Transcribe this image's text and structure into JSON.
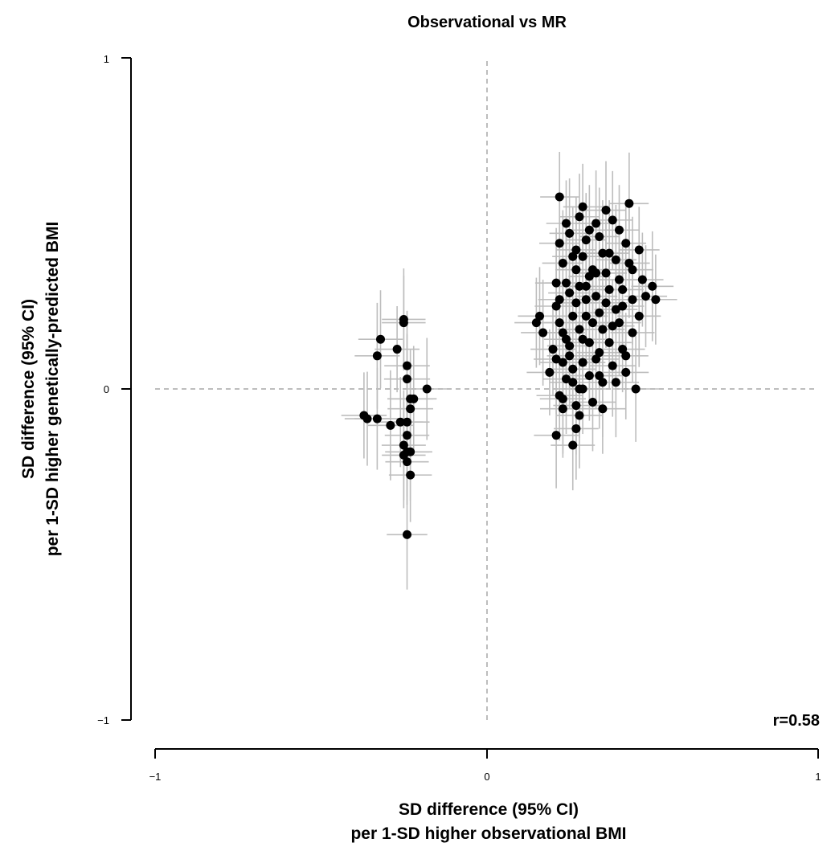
{
  "chart_data": {
    "type": "scatter",
    "title": "Observational vs MR",
    "xlabel": [
      "SD difference (95% CI)",
      "per 1-SD higher observational BMI"
    ],
    "ylabel": [
      "SD difference (95% CI)",
      "per 1-SD higher genetically-predicted BMI"
    ],
    "xlim": [
      -1,
      1
    ],
    "ylim": [
      -1,
      1
    ],
    "x_ticks": [
      -1,
      0,
      1
    ],
    "y_ticks": [
      -1,
      0,
      1
    ],
    "x_tick_labels": [
      "−1",
      "0",
      "1"
    ],
    "y_tick_labels": [
      "−1",
      "0",
      "1"
    ],
    "reference_lines": {
      "x": 0,
      "y": 0,
      "style": "dashed"
    },
    "annotation": "r=0.58",
    "point_color": "#000000",
    "errorbar_color": "#bdbdbd",
    "grid": false,
    "series": [
      {
        "points": [
          [
            -0.37,
            -0.08
          ],
          [
            -0.36,
            -0.09
          ],
          [
            -0.33,
            -0.09
          ],
          [
            -0.29,
            -0.11
          ],
          [
            -0.26,
            -0.1
          ],
          [
            -0.32,
            0.15
          ],
          [
            -0.33,
            0.1
          ],
          [
            -0.27,
            0.12
          ],
          [
            -0.25,
            0.2
          ],
          [
            -0.25,
            0.21
          ],
          [
            -0.24,
            0.07
          ],
          [
            -0.24,
            0.03
          ],
          [
            -0.23,
            -0.03
          ],
          [
            -0.22,
            -0.03
          ],
          [
            -0.23,
            -0.06
          ],
          [
            -0.24,
            -0.1
          ],
          [
            -0.24,
            -0.14
          ],
          [
            -0.25,
            -0.17
          ],
          [
            -0.24,
            -0.19
          ],
          [
            -0.23,
            -0.19
          ],
          [
            -0.25,
            -0.2
          ],
          [
            -0.24,
            -0.22
          ],
          [
            -0.23,
            -0.26
          ],
          [
            -0.18,
            0.0
          ],
          [
            -0.24,
            -0.44
          ],
          [
            0.15,
            0.2
          ],
          [
            0.16,
            0.22
          ],
          [
            0.17,
            0.17
          ],
          [
            0.19,
            0.05
          ],
          [
            0.2,
            0.12
          ],
          [
            0.21,
            0.25
          ],
          [
            0.21,
            0.32
          ],
          [
            0.22,
            0.58
          ],
          [
            0.22,
            0.44
          ],
          [
            0.23,
            0.38
          ],
          [
            0.22,
            0.2
          ],
          [
            0.23,
            0.17
          ],
          [
            0.23,
            0.08
          ],
          [
            0.24,
            0.03
          ],
          [
            0.22,
            -0.02
          ],
          [
            0.23,
            -0.06
          ],
          [
            0.21,
            -0.14
          ],
          [
            0.24,
            0.5
          ],
          [
            0.25,
            0.29
          ],
          [
            0.25,
            0.13
          ],
          [
            0.26,
            0.06
          ],
          [
            0.26,
            0.22
          ],
          [
            0.27,
            0.36
          ],
          [
            0.27,
            0.42
          ],
          [
            0.28,
            0.52
          ],
          [
            0.28,
            0.31
          ],
          [
            0.28,
            0.18
          ],
          [
            0.29,
            0.08
          ],
          [
            0.29,
            0.0
          ],
          [
            0.27,
            -0.05
          ],
          [
            0.28,
            -0.08
          ],
          [
            0.29,
            0.55
          ],
          [
            0.3,
            0.45
          ],
          [
            0.3,
            0.27
          ],
          [
            0.31,
            0.14
          ],
          [
            0.31,
            0.04
          ],
          [
            0.32,
            -0.04
          ],
          [
            0.33,
            0.5
          ],
          [
            0.33,
            0.35
          ],
          [
            0.34,
            0.23
          ],
          [
            0.34,
            0.11
          ],
          [
            0.35,
            0.02
          ],
          [
            0.35,
            -0.06
          ],
          [
            0.36,
            0.54
          ],
          [
            0.37,
            0.41
          ],
          [
            0.37,
            0.3
          ],
          [
            0.38,
            0.19
          ],
          [
            0.38,
            0.07
          ],
          [
            0.39,
            0.02
          ],
          [
            0.4,
            0.48
          ],
          [
            0.4,
            0.33
          ],
          [
            0.41,
            0.25
          ],
          [
            0.41,
            0.12
          ],
          [
            0.42,
            0.05
          ],
          [
            0.43,
            0.56
          ],
          [
            0.43,
            0.38
          ],
          [
            0.44,
            0.27
          ],
          [
            0.44,
            0.17
          ],
          [
            0.45,
            0.0
          ],
          [
            0.46,
            0.42
          ],
          [
            0.47,
            0.33
          ],
          [
            0.48,
            0.28
          ],
          [
            0.5,
            0.31
          ],
          [
            0.51,
            0.27
          ],
          [
            0.26,
            0.4
          ],
          [
            0.24,
            0.32
          ],
          [
            0.32,
            0.36
          ],
          [
            0.35,
            0.18
          ],
          [
            0.3,
            0.22
          ],
          [
            0.39,
            0.39
          ],
          [
            0.36,
            0.26
          ],
          [
            0.33,
            0.28
          ],
          [
            0.4,
            0.2
          ],
          [
            0.42,
            0.44
          ],
          [
            0.29,
            0.4
          ],
          [
            0.27,
            -0.12
          ],
          [
            0.25,
            0.47
          ],
          [
            0.31,
            0.48
          ],
          [
            0.28,
            0.0
          ],
          [
            0.34,
            0.04
          ],
          [
            0.24,
            0.15
          ],
          [
            0.37,
            0.14
          ],
          [
            0.22,
            0.27
          ],
          [
            0.23,
            -0.03
          ],
          [
            0.26,
            -0.17
          ],
          [
            0.38,
            0.51
          ],
          [
            0.44,
            0.36
          ],
          [
            0.42,
            0.1
          ],
          [
            0.3,
            0.31
          ],
          [
            0.36,
            0.35
          ],
          [
            0.27,
            0.26
          ],
          [
            0.32,
            0.2
          ],
          [
            0.34,
            0.46
          ],
          [
            0.25,
            0.1
          ],
          [
            0.29,
            0.15
          ],
          [
            0.41,
            0.3
          ],
          [
            0.46,
            0.22
          ],
          [
            0.21,
            0.09
          ],
          [
            0.39,
            0.24
          ],
          [
            0.33,
            0.09
          ],
          [
            0.35,
            0.41
          ],
          [
            0.26,
            0.02
          ],
          [
            0.31,
            0.34
          ]
        ]
      }
    ]
  }
}
